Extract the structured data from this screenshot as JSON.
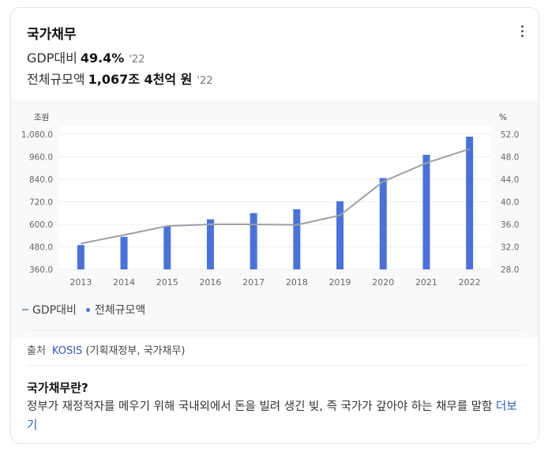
{
  "header": {
    "title": "국가채무",
    "ratio_label": "GDP대비",
    "ratio_value": "49.4%",
    "ratio_year": "'22",
    "total_label": "전체규모액",
    "total_value": "1,067조 4천억 원",
    "total_year": "'22"
  },
  "legend": {
    "line_label": "GDP대비",
    "bar_label": "전체규모액"
  },
  "source": {
    "label": "출처",
    "link": "KOSIS",
    "detail": "(기획재정부, 국가채무)"
  },
  "definition": {
    "title": "국가채무란?",
    "text": "정부가 재정적자를 메우기 위해 국내외에서 돈을 빌려 생긴 빚, 즉 국가가 갚아야 하는 채무를 말함",
    "more_link": "더보기"
  },
  "colors": {
    "bar": "#4a72d6",
    "line": "#9aa0a8",
    "link": "#2f56b0"
  },
  "chart_data": {
    "type": "bar",
    "categories": [
      "2013",
      "2014",
      "2015",
      "2016",
      "2017",
      "2018",
      "2019",
      "2020",
      "2021",
      "2022"
    ],
    "left_axis_title": "조원",
    "right_axis_title": "%",
    "left_ticks": [
      "1,080.0",
      "960.0",
      "840.0",
      "720.0",
      "600.0",
      "480.0",
      "360.0"
    ],
    "right_ticks": [
      "52.0",
      "48.0",
      "44.0",
      "40.0",
      "36.0",
      "32.0",
      "28.0"
    ],
    "ylim_left": [
      360,
      1080
    ],
    "ylim_right": [
      28,
      52
    ],
    "series": [
      {
        "name": "전체규모액",
        "type": "bar",
        "axis": "left",
        "values": [
          489.8,
          533.2,
          591.5,
          626.9,
          660.2,
          680.5,
          723.2,
          846.6,
          970.7,
          1067.4
        ]
      },
      {
        "name": "GDP대비",
        "type": "line",
        "axis": "right",
        "values": [
          32.6,
          34.1,
          35.7,
          36.0,
          36.0,
          35.9,
          37.6,
          43.6,
          46.9,
          49.4
        ]
      }
    ],
    "grid": true
  }
}
